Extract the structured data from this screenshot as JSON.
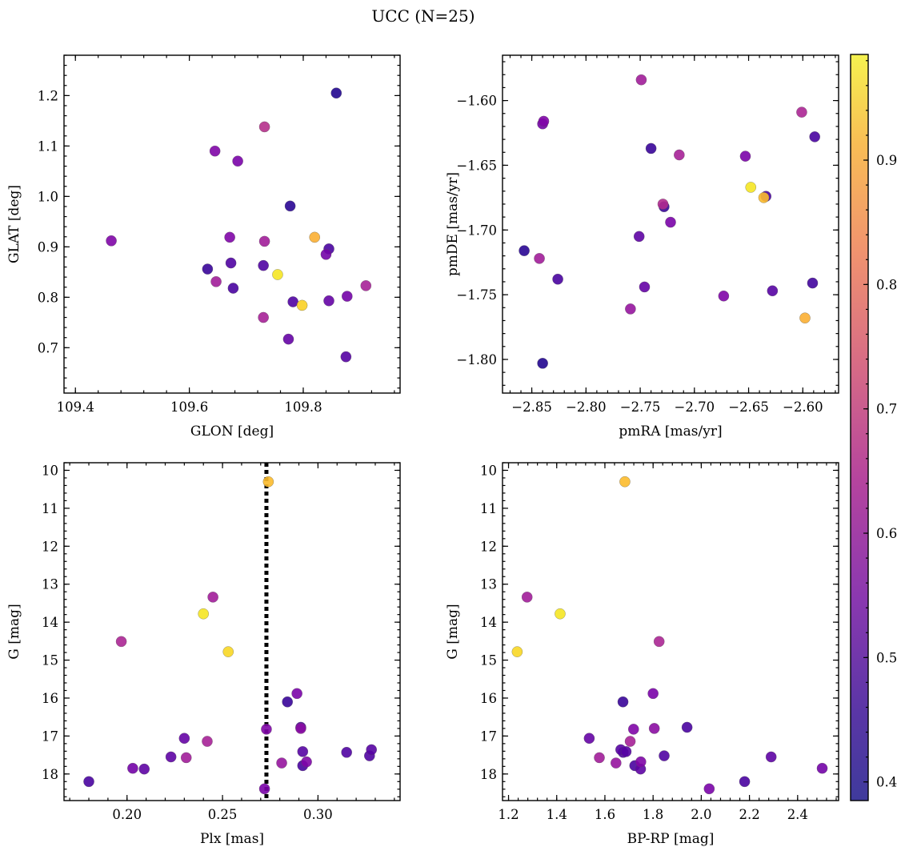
{
  "title": "UCC (N=25)",
  "colors": {
    "colormap": "plasma",
    "marker_edge": "#555555",
    "vline": "#000000"
  },
  "colorbar": {
    "range": [
      0.385,
      0.985
    ],
    "ticks": [
      "0.4",
      "0.5",
      "0.6",
      "0.7",
      "0.8",
      "0.9"
    ],
    "tick_values": [
      0.4,
      0.5,
      0.6,
      0.7,
      0.8,
      0.9
    ]
  },
  "chart_data": [
    {
      "type": "scatter",
      "xlabel": "GLON [deg]",
      "ylabel": "GLAT [deg]",
      "xlim": [
        109.38,
        109.97
      ],
      "ylim": [
        0.61,
        1.28
      ],
      "xticks": [
        109.4,
        109.6,
        109.8
      ],
      "xticklabels": [
        "109.4",
        "109.6",
        "109.8"
      ],
      "yticks": [
        0.7,
        0.8,
        0.9,
        1.0,
        1.1,
        1.2
      ],
      "yticklabels": [
        "0.7",
        "0.8",
        "0.9",
        "1.0",
        "1.1",
        "1.2"
      ],
      "points": [
        {
          "x": 109.858,
          "y": 1.205,
          "c": 0.41
        },
        {
          "x": 109.732,
          "y": 1.138,
          "c": 0.64
        },
        {
          "x": 109.645,
          "y": 1.09,
          "c": 0.54
        },
        {
          "x": 109.685,
          "y": 1.07,
          "c": 0.53
        },
        {
          "x": 109.777,
          "y": 0.981,
          "c": 0.42
        },
        {
          "x": 109.82,
          "y": 0.919,
          "c": 0.88
        },
        {
          "x": 109.463,
          "y": 0.912,
          "c": 0.54
        },
        {
          "x": 109.671,
          "y": 0.919,
          "c": 0.54
        },
        {
          "x": 109.732,
          "y": 0.911,
          "c": 0.6
        },
        {
          "x": 109.845,
          "y": 0.896,
          "c": 0.46
        },
        {
          "x": 109.84,
          "y": 0.885,
          "c": 0.52
        },
        {
          "x": 109.673,
          "y": 0.868,
          "c": 0.47
        },
        {
          "x": 109.73,
          "y": 0.863,
          "c": 0.47
        },
        {
          "x": 109.632,
          "y": 0.856,
          "c": 0.44
        },
        {
          "x": 109.755,
          "y": 0.845,
          "c": 0.96
        },
        {
          "x": 109.647,
          "y": 0.831,
          "c": 0.6
        },
        {
          "x": 109.91,
          "y": 0.823,
          "c": 0.61
        },
        {
          "x": 109.677,
          "y": 0.818,
          "c": 0.46
        },
        {
          "x": 109.877,
          "y": 0.802,
          "c": 0.52
        },
        {
          "x": 109.845,
          "y": 0.793,
          "c": 0.5
        },
        {
          "x": 109.782,
          "y": 0.791,
          "c": 0.47
        },
        {
          "x": 109.798,
          "y": 0.784,
          "c": 0.93
        },
        {
          "x": 109.73,
          "y": 0.76,
          "c": 0.61
        },
        {
          "x": 109.774,
          "y": 0.717,
          "c": 0.5
        },
        {
          "x": 109.875,
          "y": 0.682,
          "c": 0.48
        }
      ]
    },
    {
      "type": "scatter",
      "xlabel": "pmRA [mas/yr]",
      "ylabel": "pmDE [mas/yr]",
      "xlim": [
        -2.877,
        -2.567
      ],
      "ylim": [
        -1.826,
        -1.565
      ],
      "xticks": [
        -2.85,
        -2.8,
        -2.75,
        -2.7,
        -2.65,
        -2.6
      ],
      "xticklabels": [
        "−2.85",
        "−2.80",
        "−2.75",
        "−2.70",
        "−2.65",
        "−2.60"
      ],
      "yticks": [
        -1.6,
        -1.65,
        -1.7,
        -1.75,
        -1.8
      ],
      "yticklabels": [
        "−1.60",
        "−1.65",
        "−1.70",
        "−1.75",
        "−1.80"
      ],
      "points": [
        {
          "x": -2.749,
          "y": -1.584,
          "c": 0.6
        },
        {
          "x": -2.601,
          "y": -1.609,
          "c": 0.62
        },
        {
          "x": -2.839,
          "y": -1.616,
          "c": 0.54
        },
        {
          "x": -2.84,
          "y": -1.618,
          "c": 0.52
        },
        {
          "x": -2.589,
          "y": -1.628,
          "c": 0.46
        },
        {
          "x": -2.74,
          "y": -1.637,
          "c": 0.44
        },
        {
          "x": -2.714,
          "y": -1.642,
          "c": 0.61
        },
        {
          "x": -2.653,
          "y": -1.643,
          "c": 0.53
        },
        {
          "x": -2.648,
          "y": -1.667,
          "c": 0.96
        },
        {
          "x": -2.634,
          "y": -1.674,
          "c": 0.46
        },
        {
          "x": -2.636,
          "y": -1.675,
          "c": 0.9
        },
        {
          "x": -2.729,
          "y": -1.68,
          "c": 0.63
        },
        {
          "x": -2.728,
          "y": -1.682,
          "c": 0.44
        },
        {
          "x": -2.722,
          "y": -1.694,
          "c": 0.53
        },
        {
          "x": -2.751,
          "y": -1.705,
          "c": 0.49
        },
        {
          "x": -2.857,
          "y": -1.716,
          "c": 0.42
        },
        {
          "x": -2.843,
          "y": -1.722,
          "c": 0.6
        },
        {
          "x": -2.826,
          "y": -1.738,
          "c": 0.46
        },
        {
          "x": -2.591,
          "y": -1.741,
          "c": 0.45
        },
        {
          "x": -2.746,
          "y": -1.744,
          "c": 0.5
        },
        {
          "x": -2.628,
          "y": -1.747,
          "c": 0.48
        },
        {
          "x": -2.673,
          "y": -1.751,
          "c": 0.54
        },
        {
          "x": -2.759,
          "y": -1.761,
          "c": 0.58
        },
        {
          "x": -2.598,
          "y": -1.768,
          "c": 0.88
        },
        {
          "x": -2.84,
          "y": -1.803,
          "c": 0.41
        }
      ]
    },
    {
      "type": "scatter",
      "xlabel": "Plx [mas]",
      "ylabel": "G [mag]",
      "xlim": [
        0.167,
        0.343
      ],
      "ylim": [
        18.7,
        9.8
      ],
      "xticks": [
        0.2,
        0.25,
        0.3
      ],
      "xticklabels": [
        "0.20",
        "0.25",
        "0.30"
      ],
      "yticks": [
        10,
        11,
        12,
        13,
        14,
        15,
        16,
        17,
        18
      ],
      "yticklabels": [
        "10",
        "11",
        "12",
        "13",
        "14",
        "15",
        "16",
        "17",
        "18"
      ],
      "vline": {
        "x": 0.273
      },
      "points": [
        {
          "x": 0.274,
          "y": 10.3,
          "c": 0.9
        },
        {
          "x": 0.245,
          "y": 13.34,
          "c": 0.6
        },
        {
          "x": 0.24,
          "y": 13.78,
          "c": 0.96
        },
        {
          "x": 0.197,
          "y": 14.51,
          "c": 0.62
        },
        {
          "x": 0.253,
          "y": 14.78,
          "c": 0.94
        },
        {
          "x": 0.289,
          "y": 15.88,
          "c": 0.53
        },
        {
          "x": 0.284,
          "y": 16.1,
          "c": 0.44
        },
        {
          "x": 0.291,
          "y": 16.77,
          "c": 0.46
        },
        {
          "x": 0.291,
          "y": 16.8,
          "c": 0.56
        },
        {
          "x": 0.273,
          "y": 16.82,
          "c": 0.54
        },
        {
          "x": 0.23,
          "y": 17.06,
          "c": 0.5
        },
        {
          "x": 0.242,
          "y": 17.14,
          "c": 0.61
        },
        {
          "x": 0.328,
          "y": 17.36,
          "c": 0.48
        },
        {
          "x": 0.292,
          "y": 17.41,
          "c": 0.48
        },
        {
          "x": 0.315,
          "y": 17.43,
          "c": 0.47
        },
        {
          "x": 0.327,
          "y": 17.52,
          "c": 0.47
        },
        {
          "x": 0.223,
          "y": 17.55,
          "c": 0.49
        },
        {
          "x": 0.231,
          "y": 17.57,
          "c": 0.6
        },
        {
          "x": 0.294,
          "y": 17.68,
          "c": 0.54
        },
        {
          "x": 0.281,
          "y": 17.71,
          "c": 0.58
        },
        {
          "x": 0.292,
          "y": 17.78,
          "c": 0.46
        },
        {
          "x": 0.203,
          "y": 17.85,
          "c": 0.52
        },
        {
          "x": 0.209,
          "y": 17.87,
          "c": 0.49
        },
        {
          "x": 0.18,
          "y": 18.2,
          "c": 0.46
        },
        {
          "x": 0.272,
          "y": 18.39,
          "c": 0.53
        }
      ]
    },
    {
      "type": "scatter",
      "xlabel": "BP-RP [mag]",
      "ylabel": "G [mag]",
      "xlim": [
        1.175,
        2.57
      ],
      "ylim": [
        18.7,
        9.8
      ],
      "xticks": [
        1.2,
        1.4,
        1.6,
        1.8,
        2.0,
        2.2,
        2.4
      ],
      "xticklabels": [
        "1.2",
        "1.4",
        "1.6",
        "1.8",
        "2.0",
        "2.2",
        "2.4"
      ],
      "yticks": [
        10,
        11,
        12,
        13,
        14,
        15,
        16,
        17,
        18
      ],
      "yticklabels": [
        "10",
        "11",
        "12",
        "13",
        "14",
        "15",
        "16",
        "17",
        "18"
      ],
      "points": [
        {
          "x": 1.683,
          "y": 10.3,
          "c": 0.9
        },
        {
          "x": 1.277,
          "y": 13.34,
          "c": 0.6
        },
        {
          "x": 1.414,
          "y": 13.78,
          "c": 0.96
        },
        {
          "x": 1.825,
          "y": 14.51,
          "c": 0.62
        },
        {
          "x": 1.236,
          "y": 14.78,
          "c": 0.94
        },
        {
          "x": 1.8,
          "y": 15.88,
          "c": 0.53
        },
        {
          "x": 1.675,
          "y": 16.1,
          "c": 0.44
        },
        {
          "x": 1.941,
          "y": 16.77,
          "c": 0.46
        },
        {
          "x": 1.805,
          "y": 16.8,
          "c": 0.56
        },
        {
          "x": 1.719,
          "y": 16.82,
          "c": 0.54
        },
        {
          "x": 1.535,
          "y": 17.06,
          "c": 0.5
        },
        {
          "x": 1.705,
          "y": 17.14,
          "c": 0.61
        },
        {
          "x": 1.666,
          "y": 17.36,
          "c": 0.48
        },
        {
          "x": 1.688,
          "y": 17.41,
          "c": 0.48
        },
        {
          "x": 1.676,
          "y": 17.43,
          "c": 0.47
        },
        {
          "x": 1.846,
          "y": 17.52,
          "c": 0.47
        },
        {
          "x": 2.29,
          "y": 17.55,
          "c": 0.49
        },
        {
          "x": 1.577,
          "y": 17.57,
          "c": 0.6
        },
        {
          "x": 1.749,
          "y": 17.68,
          "c": 0.54
        },
        {
          "x": 1.646,
          "y": 17.71,
          "c": 0.58
        },
        {
          "x": 1.724,
          "y": 17.78,
          "c": 0.46
        },
        {
          "x": 2.502,
          "y": 17.85,
          "c": 0.52
        },
        {
          "x": 1.748,
          "y": 17.87,
          "c": 0.49
        },
        {
          "x": 2.18,
          "y": 18.2,
          "c": 0.46
        },
        {
          "x": 2.033,
          "y": 18.39,
          "c": 0.53
        }
      ]
    }
  ]
}
